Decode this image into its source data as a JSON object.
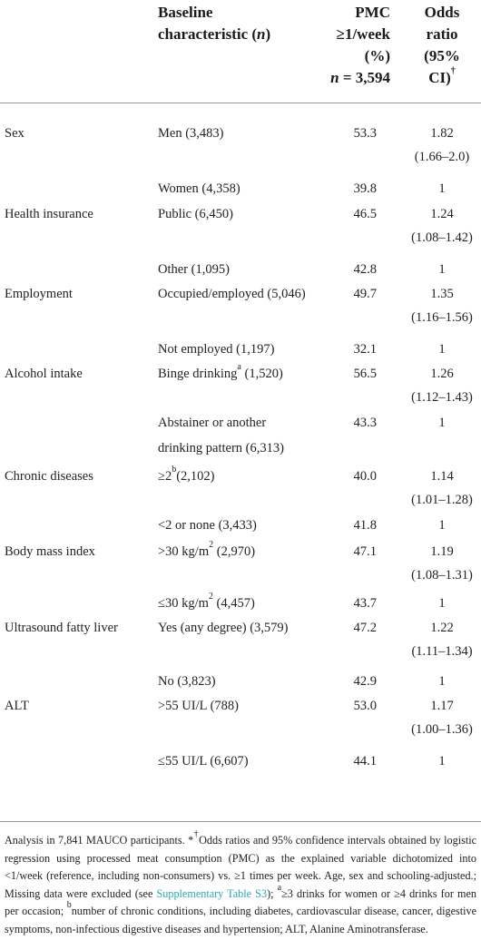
{
  "header": {
    "col2_line1": "Baseline",
    "col2_line2": "characteristic (",
    "col2_n": "n",
    "col2_close": ")",
    "col3_lines": [
      "PMC",
      "≥1/week",
      "(%)"
    ],
    "col3_n": "n",
    "col3_n_value": " = 3,594",
    "col4_lines": [
      "Odds",
      "ratio",
      "(95%",
      "CI)"
    ],
    "col4_dagger": "†"
  },
  "rows": [
    {
      "label": "Sex",
      "characteristic": "Men (3,483)",
      "pmc": "53.3",
      "or": "1.82",
      "ci": "(1.66–2.0)"
    },
    {
      "label": "",
      "characteristic": "Women (4,358)",
      "pmc": "39.8",
      "or": "1",
      "ci": ""
    },
    {
      "label": "Health insurance",
      "characteristic": "Public (6,450)",
      "pmc": "46.5",
      "or": "1.24",
      "ci": "(1.08–1.42)"
    },
    {
      "label": "",
      "characteristic": "Other (1,095)",
      "pmc": "42.8",
      "or": "1",
      "ci": ""
    },
    {
      "label": "Employment",
      "characteristic": "Occupied/employed (5,046)",
      "pmc": "49.7",
      "or": "1.35",
      "ci": "(1.16–1.56)"
    },
    {
      "label": "",
      "characteristic": "Not employed (1,197)",
      "pmc": "32.1",
      "or": "1",
      "ci": ""
    },
    {
      "label": "Alcohol intake",
      "characteristic_pre": "Binge drinking",
      "characteristic_sup": "a",
      "characteristic_post": " (1,520)",
      "pmc": "56.5",
      "or": "1.26",
      "ci": "(1.12–1.43)"
    },
    {
      "label": "",
      "characteristic_l1": "Abstainer or another",
      "characteristic_l2": "drinking pattern (6,313)",
      "pmc": "43.3",
      "or": "1",
      "ci": ""
    },
    {
      "label": "Chronic diseases",
      "characteristic_pre": "≥2",
      "characteristic_sup": "b",
      "characteristic_post": "(2,102)",
      "pmc": "40.0",
      "or": "1.14",
      "ci": "(1.01–1.28)"
    },
    {
      "label": "",
      "characteristic": "<2 or none (3,433)",
      "pmc": "41.8",
      "or": "1",
      "ci": ""
    },
    {
      "label": "Body mass index",
      "characteristic_pre": ">30 kg/m",
      "characteristic_sup": "2",
      "characteristic_post": " (2,970)",
      "pmc": "47.1",
      "or": "1.19",
      "ci": "(1.08–1.31)"
    },
    {
      "label": "",
      "characteristic_pre": "≤30 kg/m",
      "characteristic_sup": "2",
      "characteristic_post": " (4,457)",
      "pmc": "43.7",
      "or": "1",
      "ci": ""
    },
    {
      "label": "Ultrasound fatty liver",
      "characteristic": "Yes (any degree) (3,579)",
      "pmc": "47.2",
      "or": "1.22",
      "ci": "(1.11–1.34)"
    },
    {
      "label": "",
      "characteristic": "No (3,823)",
      "pmc": "42.9",
      "or": "1",
      "ci": ""
    },
    {
      "label": "ALT",
      "characteristic": ">55 UI/L (788)",
      "pmc": "53.0",
      "or": "1.17",
      "ci": "(1.00–1.36)"
    },
    {
      "label": "",
      "characteristic": "≤55 UI/L (6,607)",
      "pmc": "44.1",
      "or": "1",
      "ci": ""
    }
  ],
  "footnote": {
    "part1": "Analysis in 7,841 MAUCO participants. *",
    "dagger": "†",
    "part2": "Odds ratios and 95% confidence intervals obtained by logistic regression using processed meat consumption (PMC) as the explained variable dichotomized into <1/week (reference, including non-consumers) vs. ≥1 times per week. Age, sex and schooling-adjusted.; Missing data were excluded (see ",
    "link": "Supplementary Table S3",
    "part3": "); ",
    "sup_a": "a",
    "part4": "≥3 drinks for women or ≥4 drinks for men per occasion; ",
    "sup_b": "b",
    "part5": "number of chronic conditions, including diabetes, cardiovascular disease, cancer, digestive symptoms, non-infectious digestive diseases and hypertension; ALT, Alanine Aminotransferase."
  },
  "colors": {
    "rule": "#9a9a9a",
    "link": "#2aa6b8",
    "text": "#222222"
  }
}
